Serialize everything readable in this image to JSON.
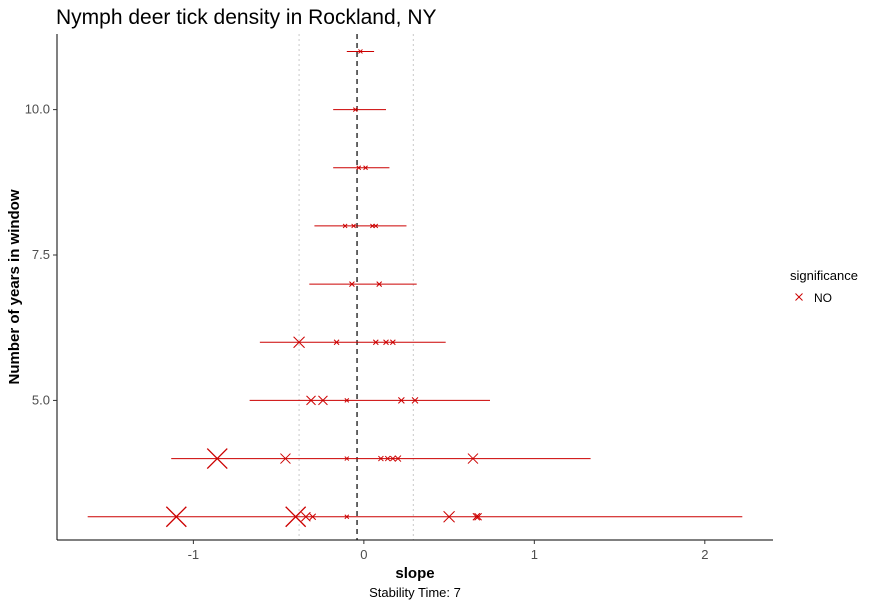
{
  "chart_data": {
    "type": "scatter",
    "title": "Nymph deer tick density in Rockland, NY",
    "xlabel": "slope",
    "ylabel": "Number of years in window",
    "caption": "Stability Time: 7",
    "xlim": [
      -1.8,
      2.4
    ],
    "ylim": [
      2.6,
      11.3
    ],
    "x_ticks": [
      -1,
      0,
      1,
      2
    ],
    "x_tick_labels": [
      "-1",
      "0",
      "1",
      "2"
    ],
    "y_ticks": [
      5.0,
      7.5,
      10.0
    ],
    "y_tick_labels": [
      "5.0",
      "7.5",
      "10.0"
    ],
    "reference_lines": {
      "dashed_x": -0.04,
      "dotted_x": [
        -0.38,
        0.29
      ]
    },
    "grid": false,
    "series_color": "#cc0000",
    "legend": {
      "title": "significance",
      "entries": [
        "NO"
      ],
      "position": "right"
    },
    "windows": [
      {
        "y": 3,
        "xmin": -1.62,
        "xmax": 2.22,
        "points": [
          -1.1,
          -0.4,
          -0.34,
          -0.3,
          -0.1,
          0.5,
          0.66,
          0.67
        ],
        "sizes": [
          1.0,
          1.0,
          0.45,
          0.3,
          0.2,
          0.55,
          0.35,
          0.35
        ]
      },
      {
        "y": 4,
        "xmin": -1.13,
        "xmax": 1.33,
        "points": [
          -0.86,
          -0.46,
          -0.1,
          0.1,
          0.14,
          0.17,
          0.2,
          0.64
        ],
        "sizes": [
          1.0,
          0.5,
          0.2,
          0.25,
          0.25,
          0.25,
          0.3,
          0.5
        ]
      },
      {
        "y": 5,
        "xmin": -0.67,
        "xmax": 0.74,
        "points": [
          -0.31,
          -0.24,
          -0.1,
          0.22,
          0.3
        ],
        "sizes": [
          0.45,
          0.45,
          0.2,
          0.3,
          0.3
        ]
      },
      {
        "y": 6,
        "xmin": -0.61,
        "xmax": 0.48,
        "points": [
          -0.38,
          -0.16,
          0.07,
          0.13,
          0.17
        ],
        "sizes": [
          0.55,
          0.25,
          0.25,
          0.25,
          0.25
        ]
      },
      {
        "y": 7,
        "xmin": -0.32,
        "xmax": 0.31,
        "points": [
          -0.07,
          0.09
        ],
        "sizes": [
          0.25,
          0.25
        ]
      },
      {
        "y": 8,
        "xmin": -0.29,
        "xmax": 0.25,
        "points": [
          -0.11,
          -0.06,
          0.05,
          0.07
        ],
        "sizes": [
          0.2,
          0.2,
          0.2,
          0.2
        ]
      },
      {
        "y": 9,
        "xmin": -0.18,
        "xmax": 0.15,
        "points": [
          -0.03,
          0.01
        ],
        "sizes": [
          0.2,
          0.2
        ]
      },
      {
        "y": 10,
        "xmin": -0.18,
        "xmax": 0.13,
        "points": [
          -0.05
        ],
        "sizes": [
          0.2
        ]
      },
      {
        "y": 11,
        "xmin": -0.1,
        "xmax": 0.06,
        "points": [
          -0.02
        ],
        "sizes": [
          0.2
        ]
      }
    ]
  }
}
